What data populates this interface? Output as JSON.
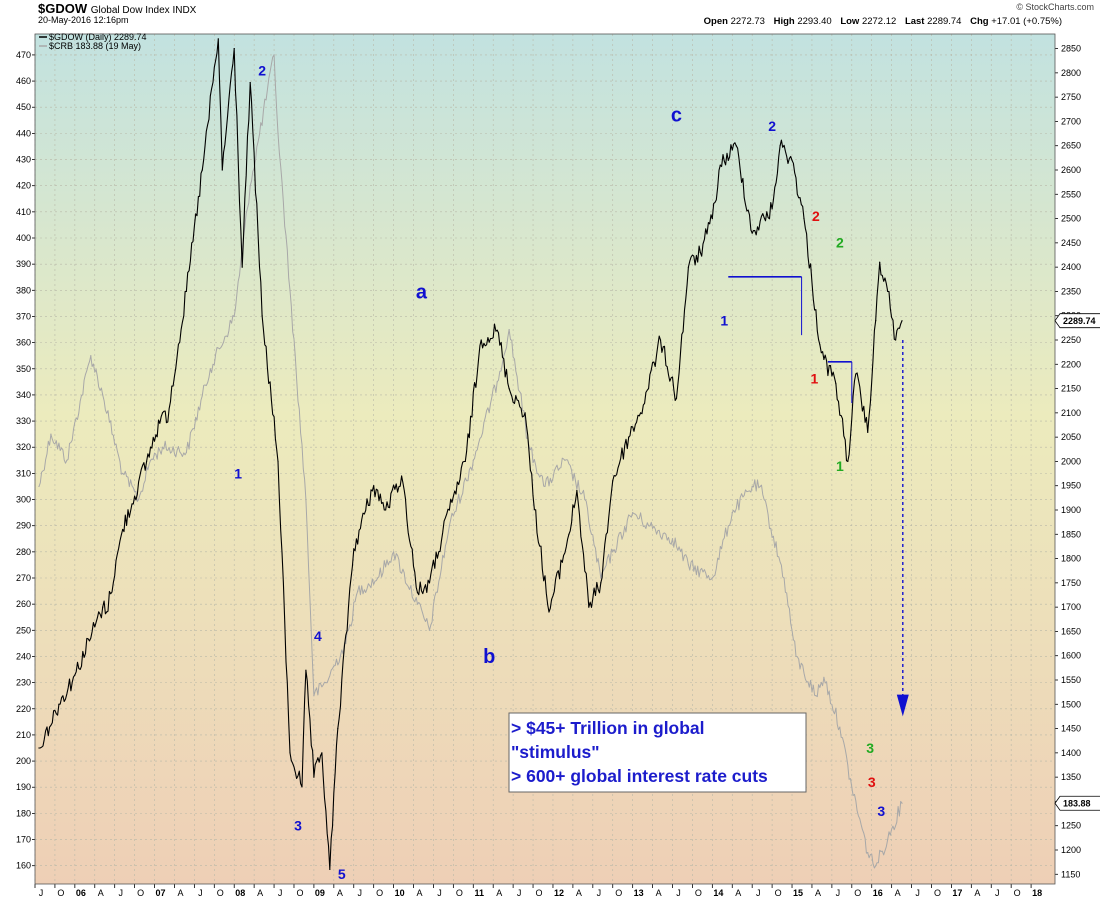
{
  "header": {
    "symbol": "$GDOW",
    "name": "Global Dow Index  INDX",
    "datetime": "20-May-2016 12:16pm",
    "copyright": "© StockCharts.com",
    "open_label": "Open",
    "open": "2272.73",
    "high_label": "High",
    "high": "2293.40",
    "low_label": "Low",
    "low": "2272.12",
    "last_label": "Last",
    "last": "2289.74",
    "chg_label": "Chg",
    "chg": "+17.01 (+0.75%)"
  },
  "chart_data": {
    "type": "line",
    "legend": [
      "$GDOW (Daily) 2289.74",
      "$CRB 183.88 (19 May)"
    ],
    "legend_position": "top-left",
    "grid": true,
    "x_tick_labels": [
      "J",
      "O",
      "06",
      "A",
      "J",
      "O",
      "07",
      "A",
      "J",
      "O",
      "08",
      "A",
      "J",
      "O",
      "09",
      "A",
      "J",
      "O",
      "10",
      "A",
      "J",
      "O",
      "11",
      "A",
      "J",
      "O",
      "12",
      "A",
      "J",
      "O",
      "13",
      "A",
      "J",
      "O",
      "14",
      "A",
      "J",
      "O",
      "15",
      "A",
      "J",
      "O",
      "16",
      "A",
      "J",
      "O",
      "17",
      "A",
      "J",
      "O",
      "18"
    ],
    "left_axis": {
      "ylim": [
        153,
        478
      ],
      "ticks": [
        160,
        170,
        180,
        190,
        200,
        210,
        220,
        230,
        240,
        250,
        260,
        270,
        280,
        290,
        300,
        310,
        320,
        330,
        340,
        350,
        360,
        370,
        380,
        390,
        400,
        410,
        420,
        430,
        440,
        450,
        460,
        470
      ]
    },
    "right_axis": {
      "ylim": [
        1130,
        2880
      ],
      "ticks": [
        1150,
        1200,
        1250,
        1300,
        1350,
        1400,
        1450,
        1500,
        1550,
        1600,
        1650,
        1700,
        1750,
        1800,
        1850,
        1900,
        1950,
        2000,
        2050,
        2100,
        2150,
        2200,
        2250,
        2300,
        2350,
        2400,
        2450,
        2500,
        2550,
        2600,
        2650,
        2700,
        2750,
        2800,
        2850
      ]
    },
    "series": [
      {
        "name": "$GDOW",
        "color": "#000000",
        "axis": "right",
        "x": [
          2005.55,
          2005.8,
          2006.0,
          2006.35,
          2006.4,
          2006.6,
          2006.9,
          2007.1,
          2007.15,
          2007.4,
          2007.6,
          2007.8,
          2007.85,
          2008.0,
          2008.1,
          2008.2,
          2008.35,
          2008.55,
          2008.7,
          2008.85,
          2008.9,
          2009.0,
          2009.1,
          2009.2,
          2009.3,
          2009.5,
          2009.75,
          2009.9,
          2010.1,
          2010.3,
          2010.45,
          2010.7,
          2010.9,
          2011.1,
          2011.3,
          2011.45,
          2011.65,
          2011.75,
          2011.95,
          2012.2,
          2012.3,
          2012.45,
          2012.6,
          2012.75,
          2012.95,
          2013.1,
          2013.35,
          2013.55,
          2013.7,
          2013.85,
          2014.0,
          2014.1,
          2014.3,
          2014.5,
          2014.75,
          2014.85,
          2015.0,
          2015.15,
          2015.35,
          2015.4,
          2015.55,
          2015.7,
          2015.8,
          2015.95,
          2016.05,
          2016.1,
          2016.2,
          2016.3,
          2016.38
        ],
        "y": [
          1410,
          1500,
          1560,
          1700,
          1690,
          1860,
          2000,
          2100,
          2080,
          2350,
          2600,
          2870,
          2600,
          2850,
          2400,
          2780,
          2300,
          2000,
          1400,
          1330,
          1570,
          1350,
          1400,
          1160,
          1450,
          1820,
          1950,
          1900,
          1970,
          1730,
          1750,
          1900,
          2000,
          2250,
          2270,
          2150,
          2100,
          1930,
          1690,
          1850,
          1940,
          1700,
          1750,
          1960,
          2050,
          2100,
          2250,
          2130,
          2400,
          2430,
          2500,
          2610,
          2650,
          2470,
          2520,
          2650,
          2620,
          2500,
          2240,
          2210,
          2160,
          2000,
          2180,
          2060,
          2290,
          2410,
          2350,
          2250,
          2289.74
        ]
      },
      {
        "name": "$CRB",
        "color": "#a8a8a8",
        "axis": "left",
        "x": [
          2005.55,
          2005.7,
          2005.9,
          2006.2,
          2006.35,
          2006.6,
          2006.8,
          2006.95,
          2007.1,
          2007.4,
          2007.7,
          2008.0,
          2008.2,
          2008.5,
          2008.55,
          2008.7,
          2008.9,
          2009.0,
          2009.15,
          2009.4,
          2009.55,
          2009.8,
          2010.0,
          2010.3,
          2010.45,
          2010.7,
          2011.0,
          2011.3,
          2011.45,
          2011.7,
          2011.9,
          2012.15,
          2012.4,
          2012.6,
          2012.75,
          2013.0,
          2013.2,
          2013.5,
          2013.7,
          2014.0,
          2014.25,
          2014.5,
          2014.6,
          2014.9,
          2015.05,
          2015.3,
          2015.4,
          2015.6,
          2015.75,
          2015.95,
          2016.05,
          2016.2,
          2016.38
        ],
        "y": [
          305,
          325,
          315,
          355,
          340,
          310,
          300,
          315,
          320,
          318,
          350,
          370,
          420,
          470,
          440,
          380,
          300,
          225,
          230,
          245,
          265,
          270,
          280,
          260,
          250,
          290,
          315,
          345,
          365,
          320,
          305,
          315,
          300,
          270,
          280,
          295,
          290,
          285,
          275,
          270,
          295,
          305,
          305,
          270,
          240,
          225,
          232,
          213,
          190,
          165,
          160,
          170,
          183.88
        ]
      }
    ],
    "annotations": [
      {
        "text": "1",
        "color": "#1010d0",
        "x": 2008.05,
        "y": 1965
      },
      {
        "text": "2",
        "color": "#1010d0",
        "x": 2008.35,
        "y": 2795
      },
      {
        "text": "3",
        "color": "#1010d0",
        "x": 2008.8,
        "y": 1240
      },
      {
        "text": "4",
        "color": "#1010d0",
        "x": 2009.05,
        "y": 1630
      },
      {
        "text": "5",
        "color": "#1010d0",
        "x": 2009.35,
        "y": 1140
      },
      {
        "text": "a",
        "color": "#1010d0",
        "x": 2010.35,
        "y": 2335
      },
      {
        "text": "b",
        "color": "#1010d0",
        "x": 2011.2,
        "y": 1585
      },
      {
        "text": "c",
        "color": "#1010d0",
        "x": 2013.55,
        "y": 2700
      },
      {
        "text": "1",
        "color": "#1010d0",
        "x": 2014.15,
        "y": 2280
      },
      {
        "text": "2",
        "color": "#1010d0",
        "x": 2014.75,
        "y": 2680
      },
      {
        "text": "2",
        "color": "#e01010",
        "x": 2015.3,
        "y": 2495
      },
      {
        "text": "1",
        "color": "#e01010",
        "x": 2015.28,
        "y": 2160
      },
      {
        "text": "2",
        "color": "#22aa22",
        "x": 2015.6,
        "y": 2440
      },
      {
        "text": "1",
        "color": "#22aa22",
        "x": 2015.6,
        "y": 1980
      },
      {
        "text": "3",
        "color": "#22aa22",
        "x": 2015.98,
        "y": 1400
      },
      {
        "text": "3",
        "color": "#e01010",
        "x": 2016.0,
        "y": 1330
      },
      {
        "text": "3",
        "color": "#1010d0",
        "x": 2016.12,
        "y": 1270
      }
    ],
    "price_tags": [
      "2289.74",
      "183.88"
    ],
    "callout": {
      "lines": [
        "> $45+ Trillion in global",
        "\"stimulus\"",
        "> 600+ global interest rate cuts"
      ],
      "color": "#1c1ccc"
    }
  }
}
